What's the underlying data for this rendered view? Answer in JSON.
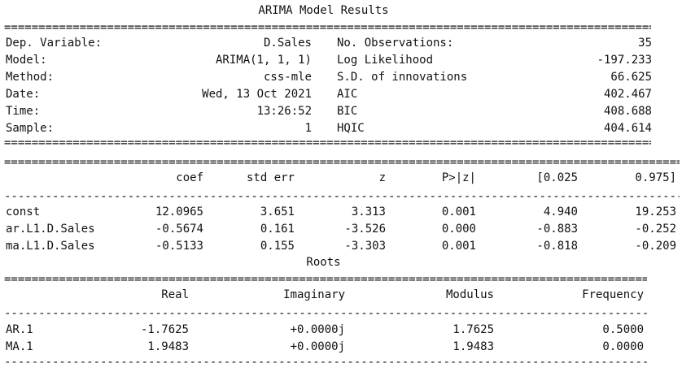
{
  "title": "ARIMA Model Results",
  "summary": {
    "left": [
      {
        "label": "Dep. Variable:",
        "value": "D.Sales"
      },
      {
        "label": "Model:",
        "value": "ARIMA(1, 1, 1)"
      },
      {
        "label": "Method:",
        "value": "css-mle"
      },
      {
        "label": "Date:",
        "value": "Wed, 13 Oct 2021"
      },
      {
        "label": "Time:",
        "value": "13:26:52"
      },
      {
        "label": "Sample:",
        "value": "1"
      }
    ],
    "right": [
      {
        "label": "No. Observations:",
        "value": "35"
      },
      {
        "label": "Log Likelihood",
        "value": "-197.233"
      },
      {
        "label": "S.D. of innovations",
        "value": "66.625"
      },
      {
        "label": "AIC",
        "value": "402.467"
      },
      {
        "label": "BIC",
        "value": "408.688"
      },
      {
        "label": "HQIC",
        "value": "404.614"
      }
    ]
  },
  "coef_table": {
    "headers": [
      "coef",
      "std err",
      "z",
      "P>|z|",
      "[0.025",
      "0.975]"
    ],
    "rows": [
      {
        "name": "const",
        "values": [
          "12.0965",
          "3.651",
          "3.313",
          "0.001",
          "4.940",
          "19.253"
        ]
      },
      {
        "name": "ar.L1.D.Sales",
        "values": [
          "-0.5674",
          "0.161",
          "-3.526",
          "0.000",
          "-0.883",
          "-0.252"
        ]
      },
      {
        "name": "ma.L1.D.Sales",
        "values": [
          "-0.5133",
          "0.155",
          "-3.303",
          "0.001",
          "-0.818",
          "-0.209"
        ]
      }
    ]
  },
  "roots_title": "Roots",
  "roots_table": {
    "headers": [
      "Real",
      "Imaginary",
      "Modulus",
      "Frequency"
    ],
    "rows": [
      {
        "name": "AR.1",
        "values": [
          "-1.7625",
          "+0.0000j",
          "1.7625",
          "0.5000"
        ]
      },
      {
        "name": "MA.1",
        "values": [
          "1.9483",
          "+0.0000j",
          "1.9483",
          "0.0000"
        ]
      }
    ]
  }
}
